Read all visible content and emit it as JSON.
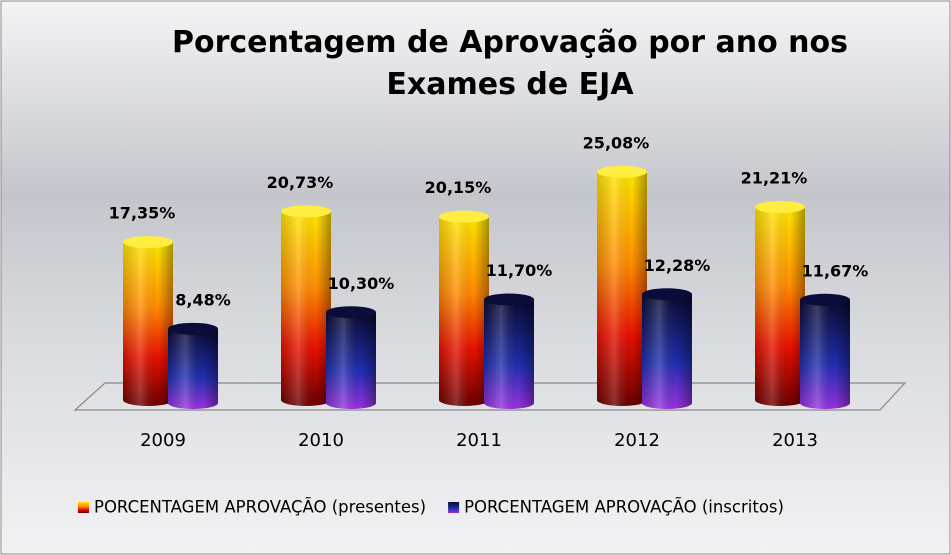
{
  "chart_data": {
    "type": "bar",
    "title": "Porcentagem de Aprovação por ano nos Exames de EJA",
    "categories": [
      "2009",
      "2010",
      "2011",
      "2012",
      "2013"
    ],
    "series": [
      {
        "name": "PORCENTAGEM APROVAÇÃO (presentes)",
        "color": "#ff6a00",
        "values": [
          17.35,
          20.73,
          20.15,
          25.08,
          21.21
        ],
        "value_labels": [
          "17,35%",
          "20,73%",
          "20,15%",
          "25,08%",
          "21,21%"
        ]
      },
      {
        "name": "PORCENTAGEM APROVAÇÃO (inscritos)",
        "color": "#1a2a9a",
        "values": [
          8.48,
          10.3,
          11.7,
          12.28,
          11.67
        ],
        "value_labels": [
          "8,48%",
          "10,30%",
          "11,70%",
          "12,28%",
          "11,67%"
        ]
      }
    ],
    "ylim": [
      0,
      30
    ],
    "legend": "bottom"
  }
}
